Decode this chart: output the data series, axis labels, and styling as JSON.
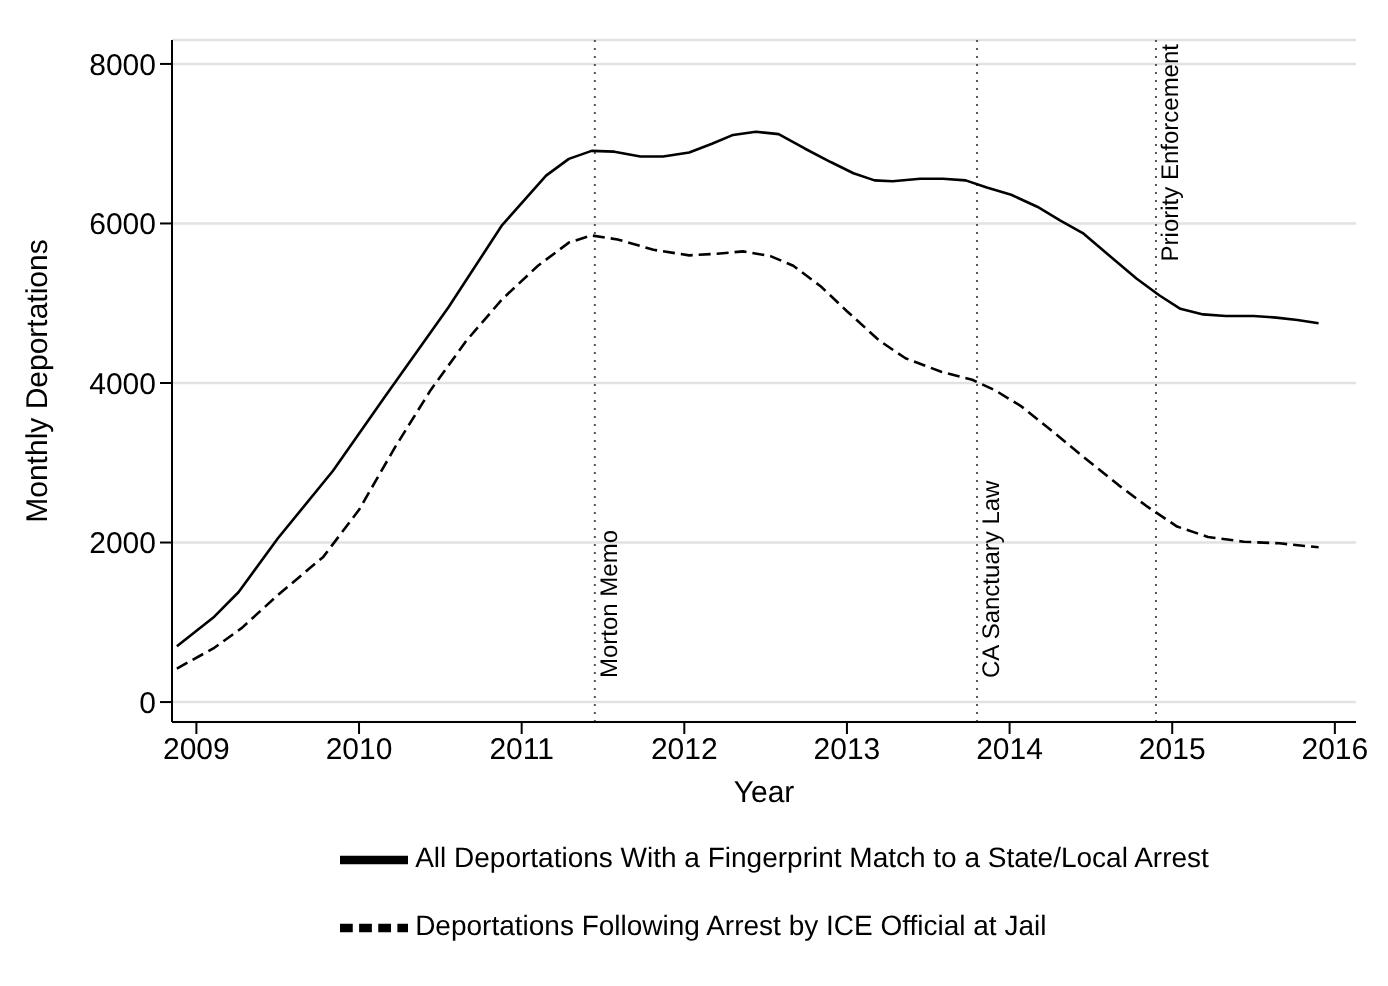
{
  "chart_data": {
    "type": "line",
    "xlabel": "Year",
    "ylabel": "Monthly Deportations",
    "xlim": [
      2008.85,
      2016.13
    ],
    "xticks": [
      2009,
      2010,
      2011,
      2012,
      2013,
      2014,
      2015,
      2016
    ],
    "ylim": [
      -250,
      8300
    ],
    "yticks": [
      0,
      2000,
      4000,
      6000,
      8000
    ],
    "grid": "y",
    "legend": "bottom",
    "marker": "none",
    "ref_lines": [
      {
        "axis": "x",
        "value": 2011.45,
        "label": "Morton Memo",
        "line_style": "dotted",
        "color": "#555555"
      },
      {
        "axis": "x",
        "value": 2013.8,
        "label": "CA Sanctuary Law",
        "line_style": "dotted",
        "color": "#555555"
      },
      {
        "axis": "x",
        "value": 2014.9,
        "label": "Priority Enforcement",
        "line_style": "dotted",
        "color": "#555555"
      }
    ],
    "series": [
      {
        "name": "All Deportations With a Fingerprint Match to a State/Local Arrest",
        "color": "#000000",
        "line_style": "solid",
        "x": [
          2008.88,
          2009.11,
          2009.26,
          2009.5,
          2009.84,
          2010.16,
          2010.55,
          2010.88,
          2011.15,
          2011.29,
          2011.43,
          2011.57,
          2011.73,
          2011.87,
          2012.03,
          2012.17,
          2012.3,
          2012.44,
          2012.58,
          2012.74,
          2012.9,
          2013.04,
          2013.17,
          2013.28,
          2013.45,
          2013.59,
          2013.73,
          2013.86,
          2014.01,
          2014.17,
          2014.31,
          2014.45,
          2014.6,
          2014.78,
          2014.92,
          2015.05,
          2015.19,
          2015.33,
          2015.5,
          2015.64,
          2015.77,
          2015.9
        ],
        "values": [
          700,
          1070,
          1380,
          2050,
          2900,
          3830,
          4950,
          5980,
          6600,
          6810,
          6910,
          6900,
          6840,
          6840,
          6890,
          7000,
          7110,
          7150,
          7120,
          6940,
          6770,
          6630,
          6540,
          6530,
          6560,
          6560,
          6540,
          6450,
          6360,
          6210,
          6040,
          5880,
          5620,
          5310,
          5100,
          4930,
          4860,
          4840,
          4840,
          4820,
          4790,
          4750
        ]
      },
      {
        "name": "Deportations Following Arrest by ICE Official at Jail",
        "color": "#000000",
        "line_style": "dashed",
        "x": [
          2008.88,
          2009.11,
          2009.28,
          2009.5,
          2009.78,
          2010.0,
          2010.22,
          2010.44,
          2010.66,
          2010.88,
          2011.1,
          2011.29,
          2011.43,
          2011.59,
          2011.81,
          2012.03,
          2012.2,
          2012.36,
          2012.53,
          2012.67,
          2012.84,
          2013.0,
          2013.2,
          2013.36,
          2013.58,
          2013.77,
          2013.91,
          2014.07,
          2014.26,
          2014.45,
          2014.67,
          2014.84,
          2015.03,
          2015.22,
          2015.44,
          2015.66,
          2015.9
        ],
        "values": [
          420,
          680,
          930,
          1340,
          1820,
          2410,
          3190,
          3910,
          4530,
          5050,
          5470,
          5760,
          5850,
          5800,
          5670,
          5600,
          5620,
          5650,
          5590,
          5470,
          5210,
          4900,
          4530,
          4310,
          4140,
          4040,
          3910,
          3710,
          3400,
          3080,
          2720,
          2460,
          2200,
          2070,
          2010,
          1990,
          1940
        ]
      }
    ]
  }
}
